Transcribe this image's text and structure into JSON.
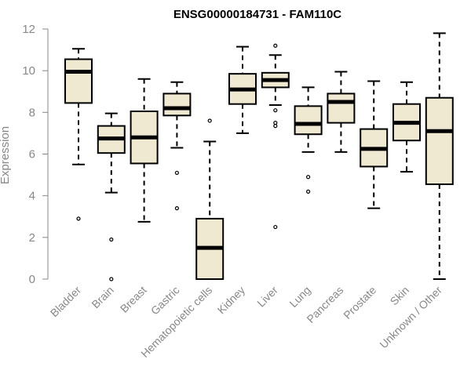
{
  "chart_data": {
    "type": "boxplot",
    "title": "ENSG00000184731 - FAM110C",
    "xlabel": "",
    "ylabel": "Expression",
    "ylim": [
      0,
      12
    ],
    "yticks": [
      0,
      2,
      4,
      6,
      8,
      10,
      12
    ],
    "box_fill": "#efe9d2",
    "categories": [
      "Bladder",
      "Brain",
      "Breast",
      "Gastric",
      "Hematopoietic cells",
      "Kidney",
      "Liver",
      "Lung",
      "Pancreas",
      "Prostate",
      "Skin",
      "Unknown / Other"
    ],
    "boxes": [
      {
        "min": 5.5,
        "q1": 8.45,
        "median": 9.95,
        "q3": 10.55,
        "max": 11.05,
        "outliers": [
          2.9
        ]
      },
      {
        "min": 4.15,
        "q1": 6.05,
        "median": 6.75,
        "q3": 7.35,
        "max": 7.95,
        "outliers": [
          1.9,
          0.0
        ]
      },
      {
        "min": 2.75,
        "q1": 5.55,
        "median": 6.8,
        "q3": 8.05,
        "max": 9.6,
        "outliers": []
      },
      {
        "min": 6.3,
        "q1": 7.85,
        "median": 8.2,
        "q3": 8.9,
        "max": 9.45,
        "outliers": [
          5.1,
          3.4
        ]
      },
      {
        "min": 0.0,
        "q1": 0.0,
        "median": 1.5,
        "q3": 2.9,
        "max": 6.6,
        "outliers": [
          7.6
        ]
      },
      {
        "min": 7.0,
        "q1": 8.4,
        "median": 9.1,
        "q3": 9.85,
        "max": 11.15,
        "outliers": []
      },
      {
        "min": 8.35,
        "q1": 9.2,
        "median": 9.55,
        "q3": 9.9,
        "max": 10.75,
        "outliers": [
          11.2,
          8.1,
          7.5,
          7.35,
          2.5
        ]
      },
      {
        "min": 6.1,
        "q1": 6.95,
        "median": 7.45,
        "q3": 8.3,
        "max": 9.2,
        "outliers": [
          4.9,
          4.2
        ]
      },
      {
        "min": 6.1,
        "q1": 7.5,
        "median": 8.5,
        "q3": 8.9,
        "max": 9.95,
        "outliers": []
      },
      {
        "min": 3.4,
        "q1": 5.4,
        "median": 6.25,
        "q3": 7.2,
        "max": 9.5,
        "outliers": []
      },
      {
        "min": 5.15,
        "q1": 6.65,
        "median": 7.5,
        "q3": 8.4,
        "max": 9.45,
        "outliers": []
      },
      {
        "min": 0.0,
        "q1": 4.55,
        "median": 7.1,
        "q3": 8.7,
        "max": 11.8,
        "outliers": []
      }
    ]
  }
}
